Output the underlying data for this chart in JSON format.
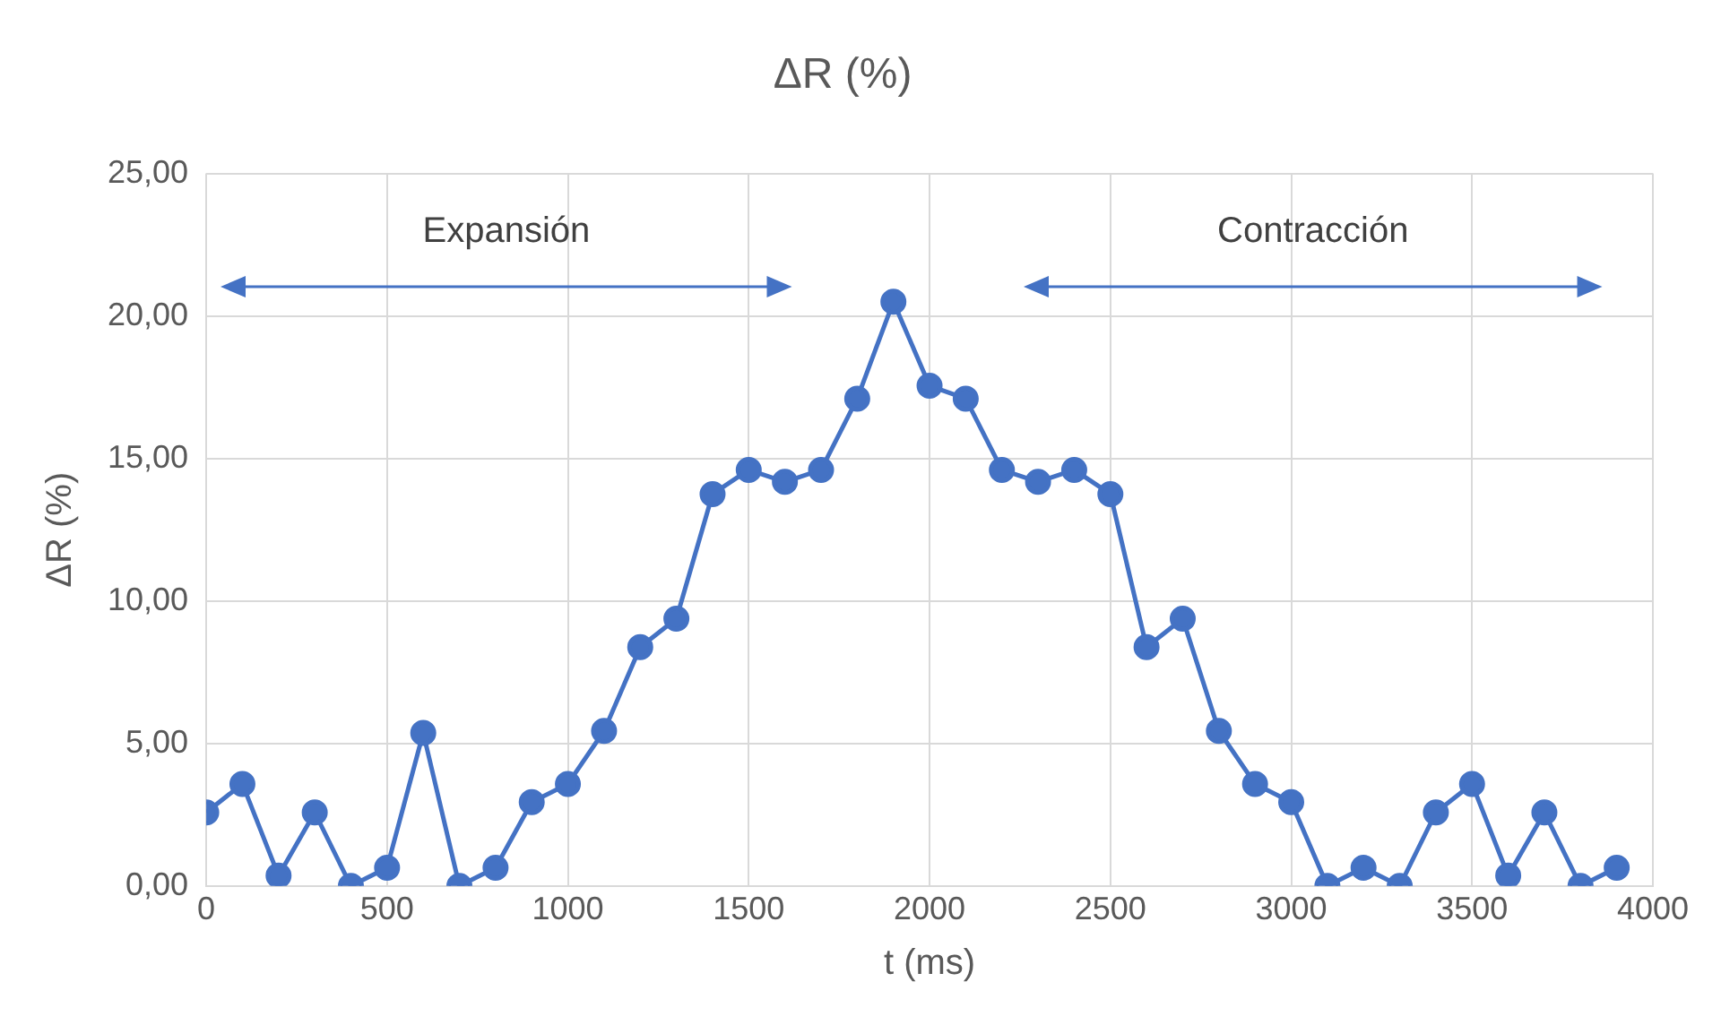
{
  "chart_data": {
    "type": "line",
    "title": "ΔR (%)",
    "xlabel": "t (ms)",
    "ylabel": "ΔR (%)",
    "x": [
      0,
      100,
      200,
      300,
      400,
      500,
      600,
      700,
      800,
      900,
      1000,
      1100,
      1200,
      1300,
      1400,
      1500,
      1600,
      1700,
      1800,
      1900,
      2000,
      2100,
      2200,
      2300,
      2400,
      2500,
      2600,
      2700,
      2800,
      2900,
      3000,
      3100,
      3200,
      3300,
      3400,
      3500,
      3600,
      3700,
      3800,
      3900
    ],
    "series": [
      {
        "color": "#4472c4",
        "values": [
          2.58,
          3.58,
          0.36,
          2.58,
          0,
          0.64,
          5.37,
          0,
          0.64,
          2.94,
          3.58,
          5.44,
          8.38,
          9.38,
          13.75,
          14.6,
          14.18,
          14.6,
          17.1,
          20.5,
          17.55,
          17.1,
          14.6,
          14.18,
          14.6,
          13.75,
          8.38,
          9.38,
          5.44,
          3.58,
          2.94,
          0,
          0.64,
          0,
          2.58,
          3.58,
          0.36,
          2.58,
          0,
          0.64
        ]
      }
    ],
    "xlim": [
      0,
      4000
    ],
    "xticks": [
      0,
      500,
      1000,
      1500,
      2000,
      2500,
      3000,
      3500,
      4000
    ],
    "ylim": [
      0,
      25
    ],
    "yticks": [
      {
        "value": 0,
        "label": "0,00"
      },
      {
        "value": 5,
        "label": "5,00"
      },
      {
        "value": 10,
        "label": "10,00"
      },
      {
        "value": 15,
        "label": "15,00"
      },
      {
        "value": 20,
        "label": "20,00"
      },
      {
        "value": 25,
        "label": "25,00"
      }
    ],
    "annotations": [
      "Expansión",
      "Contracción"
    ],
    "grid": true,
    "legend": false,
    "marker": "circle",
    "line_style": "solid"
  }
}
